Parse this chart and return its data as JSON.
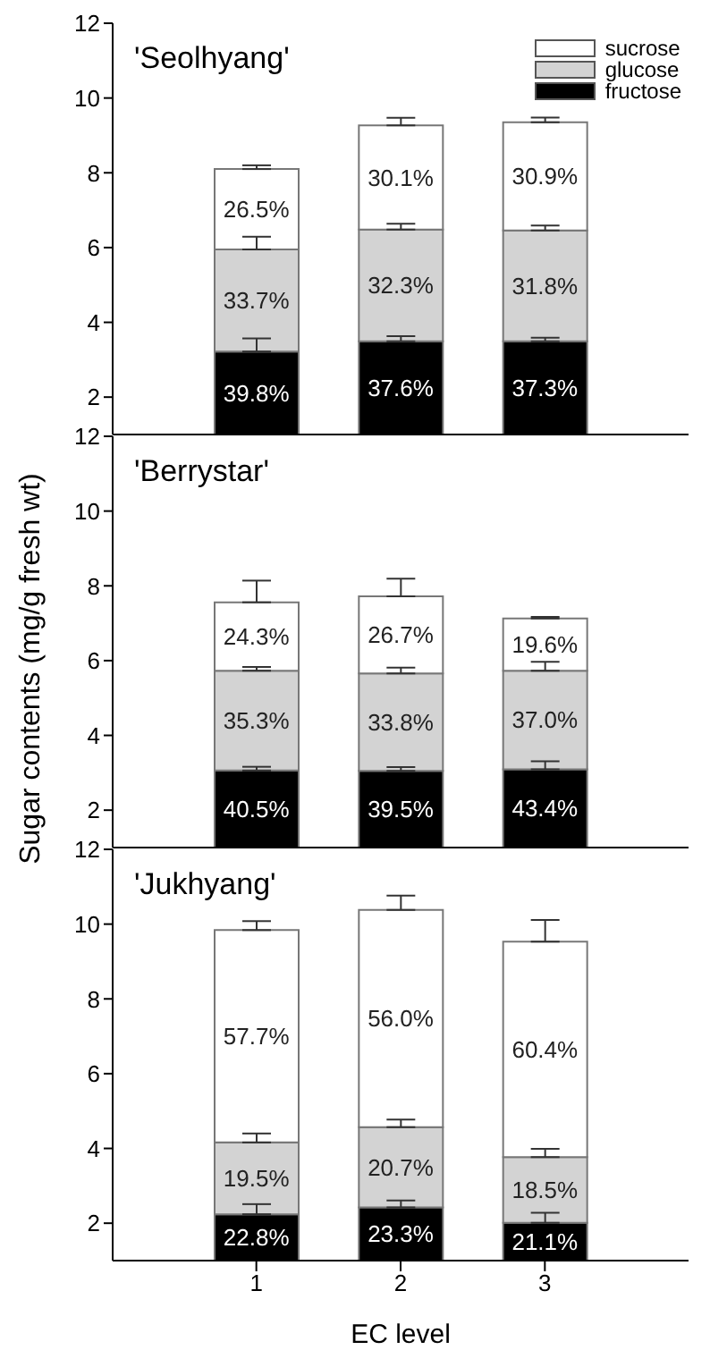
{
  "chart_data": [
    {
      "type": "bar",
      "title": "'Seolhyang'",
      "categories": [
        "1",
        "2",
        "3"
      ],
      "stacked": true,
      "ylim": [
        1,
        12
      ],
      "yticks": [
        2,
        4,
        6,
        8,
        10,
        12
      ],
      "legend": "top right",
      "tick_labels": "y",
      "series": [
        {
          "name": "fructose",
          "color": "#000000",
          "values": [
            3.22,
            3.49,
            3.49
          ],
          "errors": [
            0.35,
            0.14,
            0.1
          ]
        },
        {
          "name": "glucose",
          "color": "#d3d3d3",
          "values": [
            2.73,
            2.99,
            2.97
          ],
          "errors": [
            0.34,
            0.16,
            0.13
          ]
        },
        {
          "name": "sucrose",
          "color": "#ffffff",
          "values": [
            2.15,
            2.79,
            2.89
          ],
          "errors": [
            0.1,
            0.2,
            0.13
          ]
        }
      ],
      "annotations": [
        "39.8%",
        "37.6%",
        "37.3%",
        "33.7%",
        "32.3%",
        "31.8%",
        "26.5%",
        "30.1%",
        "30.9%"
      ]
    },
    {
      "type": "bar",
      "title": "'Berrystar'",
      "ylabel": "Sugar contents (mg/g fresh wt)",
      "categories": [
        "1",
        "2",
        "3"
      ],
      "stacked": true,
      "ylim": [
        1,
        12
      ],
      "yticks": [
        2,
        4,
        6,
        8,
        10,
        12
      ],
      "tick_labels": "y",
      "series": [
        {
          "color": "#000000",
          "values": [
            3.06,
            3.05,
            3.09
          ],
          "errors": [
            0.1,
            0.1,
            0.22
          ]
        },
        {
          "color": "#d3d3d3",
          "values": [
            2.67,
            2.61,
            2.64
          ],
          "errors": [
            0.1,
            0.15,
            0.24
          ]
        },
        {
          "color": "#ffffff",
          "values": [
            1.83,
            2.06,
            1.4
          ],
          "errors": [
            0.58,
            0.47,
            0.04
          ]
        }
      ],
      "annotations": [
        "40.5%",
        "39.5%",
        "43.4%",
        "35.3%",
        "33.8%",
        "37.0%",
        "24.3%",
        "26.7%",
        "19.6%"
      ]
    },
    {
      "type": "bar",
      "title": "'Jukhyang'",
      "xlabel": "EC level",
      "categories": [
        "1",
        "2",
        "3"
      ],
      "stacked": true,
      "ylim": [
        1,
        12
      ],
      "yticks": [
        2,
        4,
        6,
        8,
        10,
        12
      ],
      "series": [
        {
          "color": "#000000",
          "values": [
            2.24,
            2.42,
            2.01
          ],
          "errors": [
            0.27,
            0.19,
            0.27
          ]
        },
        {
          "color": "#d3d3d3",
          "values": [
            1.92,
            2.15,
            1.76
          ],
          "errors": [
            0.24,
            0.2,
            0.22
          ]
        },
        {
          "color": "#ffffff",
          "values": [
            5.68,
            5.81,
            5.76
          ],
          "errors": [
            0.24,
            0.38,
            0.58
          ]
        }
      ],
      "annotations": [
        "22.8%",
        "23.3%",
        "21.1%",
        "19.5%",
        "20.7%",
        "18.5%",
        "57.7%",
        "56.0%",
        "60.4%"
      ]
    }
  ]
}
